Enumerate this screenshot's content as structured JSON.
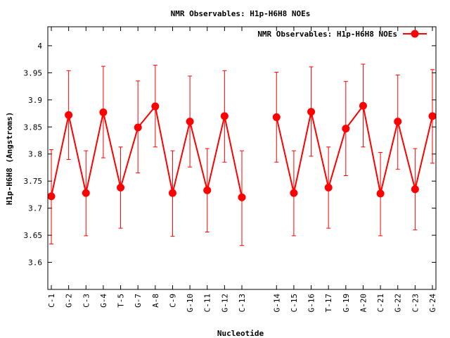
{
  "chart_data": {
    "type": "line",
    "title": "NMR Observables: H1p-H6H8 NOEs",
    "xlabel": "Nucleotide",
    "ylabel": "H1p-H6H8 (Angstroms)",
    "ylim": [
      3.55,
      4.035
    ],
    "yticks": [
      "3.6",
      "3.65",
      "3.7",
      "3.75",
      "3.8",
      "3.85",
      "3.9",
      "3.95",
      "4"
    ],
    "legend": {
      "position": "top-right",
      "label": "NMR Observables: H1p-H6H8 NOEs"
    },
    "color": "#ff0000",
    "categories": [
      "C-1",
      "G-2",
      "C-3",
      "G-4",
      "T-5",
      "G-7",
      "A-8",
      "C-9",
      "G-10",
      "C-11",
      "G-12",
      "C-13",
      "",
      "G-14",
      "C-15",
      "G-16",
      "T-17",
      "G-19",
      "A-20",
      "C-21",
      "G-22",
      "C-23",
      "G-24"
    ],
    "series": [
      {
        "name": "NMR Observables: H1p-H6H8 NOEs",
        "values": [
          3.722,
          3.872,
          3.728,
          3.877,
          3.738,
          3.849,
          3.888,
          3.728,
          3.86,
          3.733,
          3.87,
          3.72,
          null,
          3.868,
          3.728,
          3.878,
          3.738,
          3.847,
          3.889,
          3.727,
          3.86,
          3.735,
          3.87
        ],
        "err_low": [
          3.634,
          3.79,
          3.649,
          3.793,
          3.663,
          3.765,
          3.813,
          3.648,
          3.776,
          3.656,
          3.785,
          3.631,
          null,
          3.785,
          3.649,
          3.796,
          3.663,
          3.76,
          3.813,
          3.649,
          3.772,
          3.66,
          3.783
        ],
        "err_high": [
          3.808,
          3.954,
          3.806,
          3.962,
          3.813,
          3.935,
          3.964,
          3.806,
          3.944,
          3.81,
          3.954,
          3.806,
          null,
          3.951,
          3.806,
          3.961,
          3.813,
          3.934,
          3.966,
          3.803,
          3.946,
          3.81,
          3.956
        ]
      }
    ]
  }
}
